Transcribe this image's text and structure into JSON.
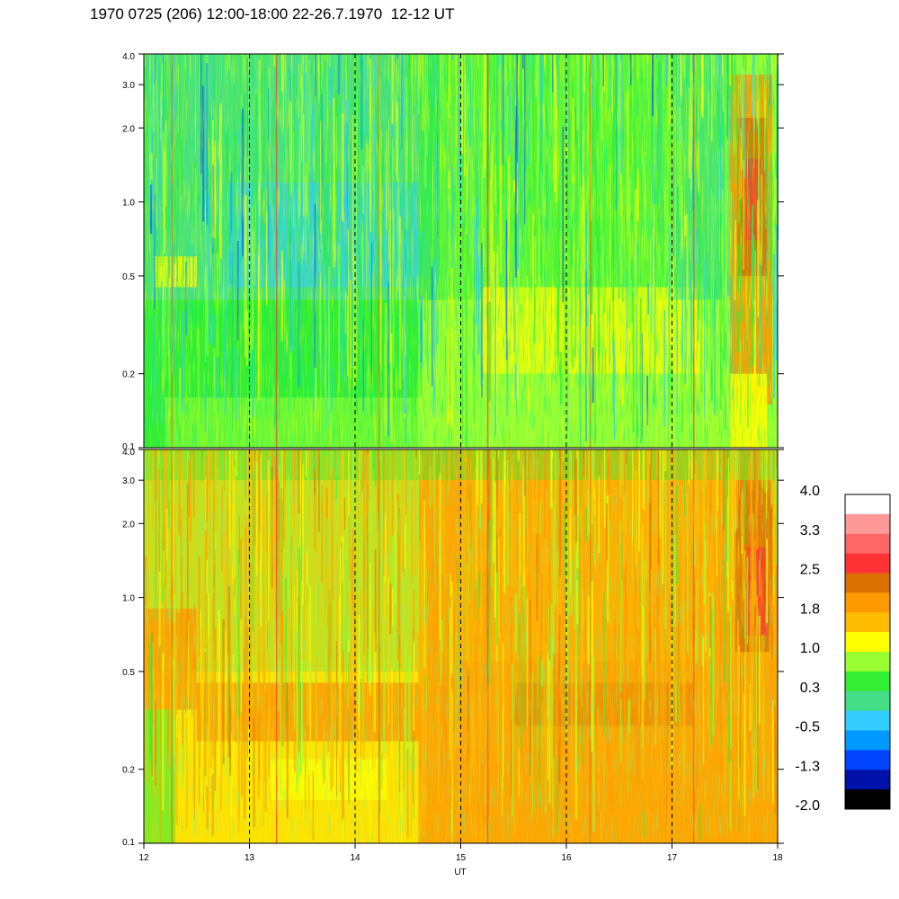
{
  "title": "1970 0725 (206) 12:00-18:00 22-26.7.1970  12-12 UT",
  "chart_data": [
    {
      "type": "heatmap",
      "panel": "upper",
      "x_range": [
        12,
        18
      ],
      "y_range": [
        0.1,
        4.0
      ],
      "y_scale": "log",
      "x_ticks": [
        "12",
        "13",
        "14",
        "15",
        "16",
        "17",
        "18"
      ],
      "y_ticks": [
        "0.1",
        "0.2",
        "0.5",
        "1.0",
        "2.0",
        "3.0",
        "4.0"
      ],
      "hour_markers": [
        13,
        14,
        15,
        16,
        17
      ],
      "dominant_levels": "mostly 0.3 to 1.0 (green / yellow-green), bluish -0.5 to 0.3 near 0.5-1.0 between 12 and 14.5, orange to 2.5 at 17.6-17.9",
      "xlabel": "",
      "ylabel": ""
    },
    {
      "type": "heatmap",
      "panel": "lower",
      "x_range": [
        12,
        18
      ],
      "y_range": [
        0.1,
        4.0
      ],
      "y_scale": "log",
      "x_ticks": [
        "12",
        "13",
        "14",
        "15",
        "16",
        "17",
        "18"
      ],
      "y_ticks": [
        "0.1",
        "0.2",
        "0.5",
        "1.0",
        "2.0",
        "3.0",
        "4.0"
      ],
      "hour_markers": [
        13,
        14,
        15,
        16,
        17
      ],
      "dominant_levels": "mostly 1.0 to 1.8 (yellow / orange), orange band near 0.3-0.5, red 2.5 near 17.8",
      "xlabel": "UT",
      "ylabel": ""
    }
  ],
  "colorbar": {
    "tick_labels": [
      "4.0",
      "3.3",
      "2.5",
      "1.8",
      "1.0",
      "0.3",
      "-0.5",
      "-1.3",
      "-2.0"
    ],
    "colors": [
      "#ffffff",
      "#ff9999",
      "#ff6666",
      "#ff3333",
      "#d97000",
      "#ff9900",
      "#ffbb00",
      "#ffff00",
      "#99ff33",
      "#33ee33",
      "#44dd88",
      "#33ccff",
      "#0099ff",
      "#0044ff",
      "#0011aa",
      "#000000"
    ]
  },
  "palette": {
    "black": "#000000",
    "navy": "#0011aa",
    "blue": "#0044ff",
    "azure": "#0099ff",
    "cyan": "#33ccff",
    "teal": "#44dd88",
    "green": "#33ee33",
    "lime": "#99ff33",
    "yellow": "#ffff00",
    "amber": "#ffbb00",
    "orange": "#ff9900",
    "brown": "#d97000",
    "red": "#ff3333",
    "salmon": "#ff6666",
    "pink": "#ff9999",
    "white": "#ffffff"
  }
}
